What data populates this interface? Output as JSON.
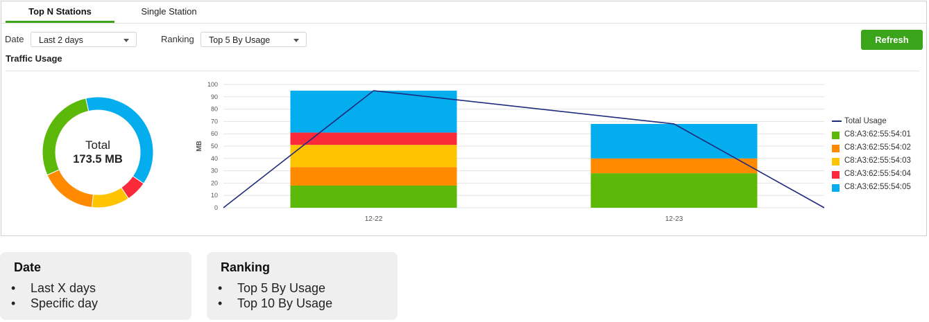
{
  "tabs": [
    {
      "label": "Top N Stations",
      "active": true
    },
    {
      "label": "Single Station",
      "active": false
    }
  ],
  "filters": {
    "date_label": "Date",
    "date_value": "Last 2 days",
    "ranking_label": "Ranking",
    "ranking_value": "Top 5 By Usage"
  },
  "refresh_label": "Refresh",
  "section_title": "Traffic Usage",
  "donut": {
    "total_label": "Total",
    "total_value": "173.5 MB"
  },
  "colors": {
    "accent": "#3aa51a",
    "line": "#1f2a7c",
    "series": [
      "#5cb90a",
      "#ff8a00",
      "#ffc400",
      "#fb2a3a",
      "#04aeee"
    ]
  },
  "chart_data": {
    "type": "bar",
    "stacked": true,
    "categories": [
      "12-22",
      "12-23"
    ],
    "ylabel": "MB",
    "ylim": [
      0,
      100
    ],
    "yticks": [
      0,
      10,
      20,
      30,
      40,
      50,
      60,
      70,
      80,
      90,
      100
    ],
    "grid": true,
    "legend_position": "right",
    "series": [
      {
        "name": "C8:A3:62:55:54:01",
        "values": [
          18,
          28
        ]
      },
      {
        "name": "C8:A3:62:55:54:02",
        "values": [
          15,
          12
        ]
      },
      {
        "name": "C8:A3:62:55:54:03",
        "values": [
          18,
          0
        ]
      },
      {
        "name": "C8:A3:62:55:54:04",
        "values": [
          10,
          0
        ]
      },
      {
        "name": "C8:A3:62:55:54:05",
        "values": [
          34,
          28
        ]
      }
    ],
    "line": {
      "name": "Total Usage",
      "values": [
        0,
        95,
        68,
        0
      ]
    },
    "donut_shares": [
      {
        "name": "C8:A3:62:55:54:01",
        "value": 46
      },
      {
        "name": "C8:A3:62:55:54:02",
        "value": 27
      },
      {
        "name": "C8:A3:62:55:54:03",
        "value": 18
      },
      {
        "name": "C8:A3:62:55:54:04",
        "value": 10
      },
      {
        "name": "C8:A3:62:55:54:05",
        "value": 62
      }
    ]
  },
  "cards": [
    {
      "title": "Date",
      "items": [
        "Last X days",
        "Specific day"
      ]
    },
    {
      "title": "Ranking",
      "items": [
        "Top 5 By Usage",
        "Top 10 By Usage"
      ]
    }
  ]
}
